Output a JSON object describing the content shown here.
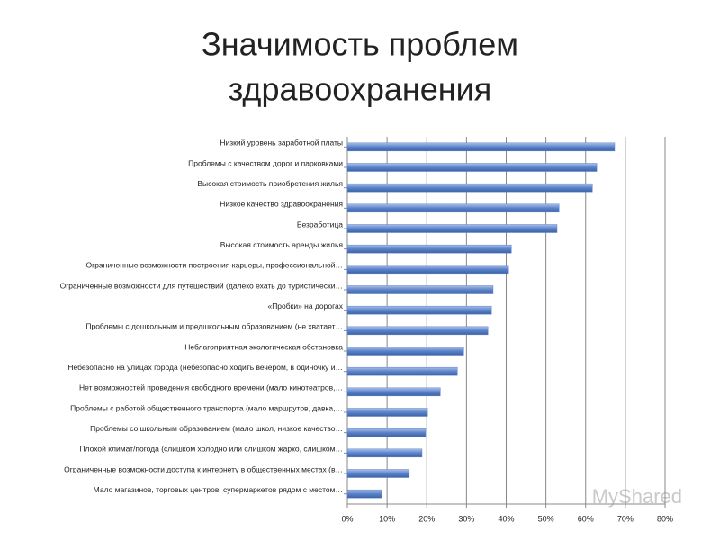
{
  "chart_data": {
    "type": "hbar",
    "title": "Значимость проблем здравоохранения",
    "categories": [
      "Низкий уровень заработной платы",
      "Проблемы с качеством дорог и парковками",
      "Высокая стоимость приобретения жилья",
      "Низкое качество здравоохранения",
      "Безработица",
      "Высокая стоимость аренды жилья",
      "Ограниченные возможности построения карьеры, профессиональной…",
      "Ограниченные возможности для путешествий (далеко ехать до туристически…",
      "«Пробки» на дорогах",
      "Проблемы с дошкольным и предшкольным образованием (не хватает…",
      "Неблагоприятная экологическая обстановка",
      "Небезопасно на улицах города (небезопасно ходить вечером, в одиночку и…",
      "Нет возможностей проведения свободного времени (мало кинотеатров,…",
      "Проблемы с работой общественного транспорта (мало маршрутов, давка,…",
      "Проблемы со школьным образованием (мало школ, низкое качество…",
      "Плохой климат/погода (слишком холодно или слишком жарко, слишком…",
      "Ограниченные возможности доступа к интернету в общественных местах (в…",
      "Мало магазинов, торговых центров, супермаркетов рядом с местом…"
    ],
    "values": [
      67.3,
      62.8,
      61.7,
      53.3,
      52.8,
      41.3,
      40.6,
      36.7,
      36.3,
      35.4,
      29.3,
      27.7,
      23.4,
      20.2,
      19.7,
      18.8,
      15.6,
      8.6
    ],
    "color": "#5b82c8",
    "xlim": [
      0,
      80
    ],
    "xticks": [
      {
        "value": 0,
        "label": "0%"
      },
      {
        "value": 10,
        "label": "10%"
      },
      {
        "value": 20,
        "label": "20%"
      },
      {
        "value": 30,
        "label": "30%"
      },
      {
        "value": 40,
        "label": "40%"
      },
      {
        "value": 50,
        "label": "50%"
      },
      {
        "value": 60,
        "label": "60%"
      },
      {
        "value": 70,
        "label": "70%"
      },
      {
        "value": 80,
        "label": "80%"
      }
    ],
    "grid": true,
    "watermark": "MyShared"
  }
}
